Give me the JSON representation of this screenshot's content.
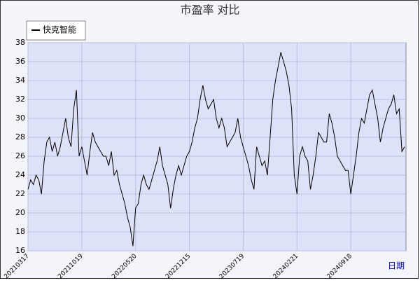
{
  "chart_data": {
    "type": "line",
    "title": "市盈率  对比",
    "xlabel": "日期",
    "categories": [
      "20210317",
      null,
      null,
      null,
      null,
      null,
      null,
      null,
      null,
      null,
      null,
      null,
      null,
      null,
      null,
      null,
      null,
      null,
      null,
      null,
      "20211019",
      null,
      null,
      null,
      null,
      null,
      null,
      null,
      null,
      null,
      null,
      null,
      null,
      null,
      null,
      null,
      null,
      null,
      null,
      null,
      "20220520",
      null,
      null,
      null,
      null,
      null,
      null,
      null,
      null,
      null,
      null,
      null,
      null,
      null,
      null,
      null,
      null,
      null,
      null,
      null,
      "20221215",
      null,
      null,
      null,
      null,
      null,
      null,
      null,
      null,
      null,
      null,
      null,
      null,
      null,
      null,
      null,
      null,
      null,
      null,
      null,
      "20230719",
      null,
      null,
      null,
      null,
      null,
      null,
      null,
      null,
      null,
      null,
      null,
      null,
      null,
      null,
      null,
      null,
      null,
      null,
      null,
      "20240221",
      null,
      null,
      null,
      null,
      null,
      null,
      null,
      null,
      null,
      null,
      null,
      null,
      null,
      null,
      null,
      null,
      null,
      null,
      null,
      "20240918",
      null,
      null,
      null,
      null,
      null,
      null,
      null,
      null,
      null,
      null,
      null,
      null,
      null,
      null,
      null,
      null,
      null,
      null,
      null,
      null
    ],
    "series": [
      {
        "name": "快克智能",
        "color": "#000000",
        "values": [
          22.5,
          23.5,
          23,
          24,
          23.5,
          22,
          25.5,
          27.5,
          28,
          26.5,
          27.5,
          26,
          27,
          28.5,
          30,
          28,
          27,
          31,
          33,
          26,
          27,
          25.5,
          24,
          26.5,
          28.5,
          27.5,
          27,
          26.5,
          26,
          26,
          25,
          26.5,
          24,
          24.5,
          23,
          22,
          21,
          19.5,
          18.5,
          16.5,
          20.5,
          21,
          23,
          24,
          23,
          22.5,
          23.5,
          24.5,
          25.5,
          27,
          25,
          24,
          23,
          20.5,
          22.5,
          24,
          25,
          24,
          25,
          26,
          26.5,
          27.5,
          29,
          30,
          32,
          33.5,
          32,
          31,
          31.5,
          32,
          30,
          29,
          30,
          29,
          27,
          27.5,
          28,
          28.5,
          30,
          28,
          27,
          26,
          25,
          23.5,
          22.5,
          27,
          26,
          25,
          25.5,
          24,
          28,
          32,
          34,
          35.5,
          37,
          36,
          35,
          33.5,
          31,
          24,
          22,
          26,
          27,
          26,
          25.5,
          22.5,
          24,
          26,
          28.5,
          28,
          27.5,
          27.5,
          30.5,
          29.5,
          28,
          26,
          25.5,
          25,
          24.5,
          24.5,
          22,
          24,
          26,
          28.5,
          30,
          29.5,
          31,
          32.5,
          33,
          31.5,
          30,
          27.5,
          29,
          30,
          31,
          31.5,
          32.5,
          30.5,
          31,
          26.5,
          27
        ]
      }
    ],
    "ylim": [
      16,
      38
    ],
    "yticks": [
      16,
      18,
      20,
      22,
      24,
      26,
      28,
      30,
      32,
      34,
      36,
      38
    ],
    "grid": true,
    "legend": "top-left"
  }
}
